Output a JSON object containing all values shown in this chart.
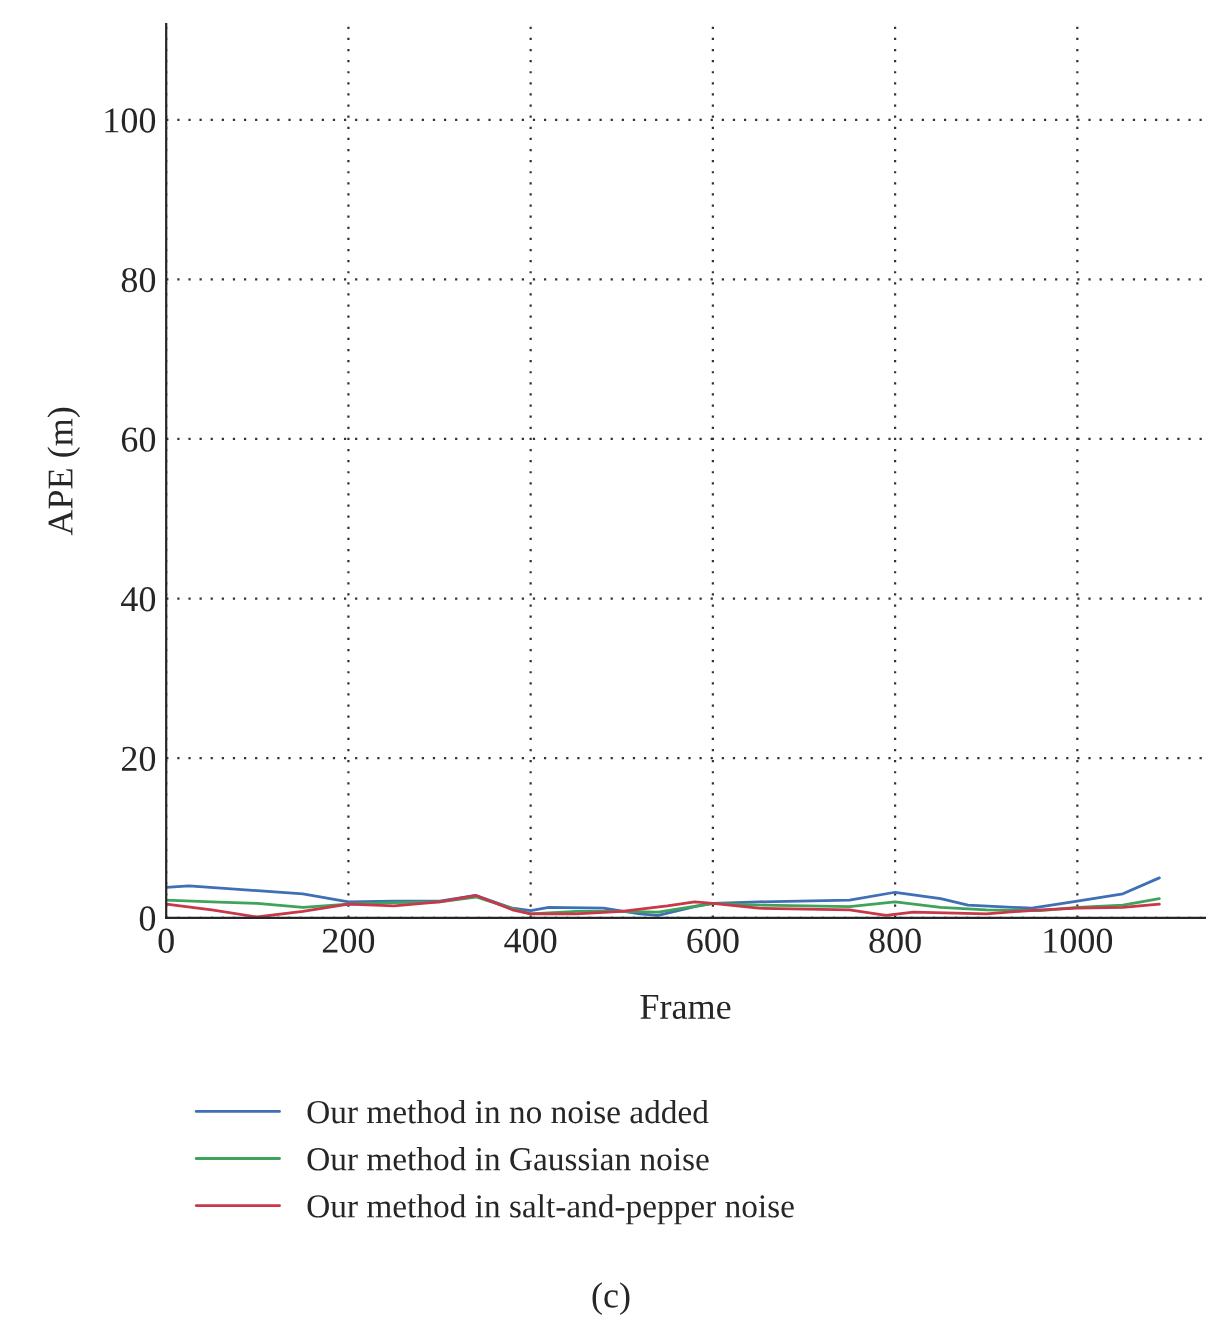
{
  "chart_data": {
    "type": "line",
    "xlabel": "Frame",
    "ylabel": "APE (m)",
    "xlim": [
      0,
      1140
    ],
    "ylim": [
      0,
      112
    ],
    "xticks": [
      0,
      200,
      400,
      600,
      800,
      1000
    ],
    "yticks": [
      0,
      20,
      40,
      60,
      80,
      100
    ],
    "grid": true,
    "legend": "bottom",
    "annotations": [
      "(c)"
    ],
    "series": [
      {
        "name": "Our method in no noise added",
        "color": "#3f6fb5",
        "x": [
          0,
          25,
          100,
          150,
          200,
          250,
          300,
          340,
          380,
          400,
          420,
          480,
          520,
          540,
          580,
          600,
          650,
          750,
          800,
          850,
          880,
          950,
          1000,
          1050,
          1090
        ],
        "values": [
          3.8,
          4.0,
          3.4,
          3.0,
          2.0,
          2.1,
          2.1,
          2.8,
          1.2,
          0.9,
          1.3,
          1.2,
          0.5,
          0.3,
          1.4,
          1.8,
          2.0,
          2.2,
          3.2,
          2.4,
          1.6,
          1.2,
          2.1,
          3.0,
          5.0
        ]
      },
      {
        "name": "Our method in Gaussian noise",
        "color": "#3fa35a",
        "x": [
          0,
          50,
          100,
          150,
          200,
          250,
          300,
          340,
          390,
          400,
          450,
          500,
          540,
          600,
          650,
          750,
          800,
          850,
          900,
          960,
          1000,
          1050,
          1090
        ],
        "values": [
          2.2,
          2.0,
          1.8,
          1.3,
          1.7,
          1.9,
          2.0,
          2.6,
          0.8,
          0.5,
          0.8,
          0.8,
          0.7,
          1.8,
          1.6,
          1.4,
          2.0,
          1.3,
          1.0,
          0.9,
          1.3,
          1.6,
          2.4
        ]
      },
      {
        "name": "Our method in salt-and-pepper noise",
        "color": "#c8384a",
        "x": [
          0,
          50,
          100,
          150,
          200,
          250,
          300,
          340,
          380,
          400,
          450,
          500,
          550,
          580,
          600,
          650,
          750,
          790,
          820,
          900,
          960,
          1000,
          1050,
          1090
        ],
        "values": [
          1.7,
          1.0,
          0.1,
          0.8,
          1.7,
          1.5,
          2.0,
          2.8,
          1.0,
          0.5,
          0.5,
          0.8,
          1.5,
          2.0,
          1.8,
          1.2,
          1.0,
          0.3,
          0.7,
          0.5,
          1.0,
          1.2,
          1.3,
          1.7
        ]
      }
    ]
  }
}
